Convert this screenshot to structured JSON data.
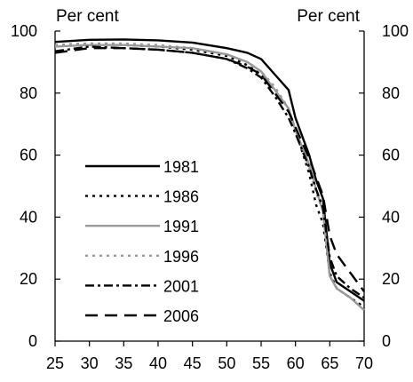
{
  "chart_data": {
    "type": "line",
    "left_unit_label": "Per cent",
    "right_unit_label": "Per cent",
    "xlim": [
      25,
      70
    ],
    "ylim": [
      0,
      100
    ],
    "x_ticks": [
      25,
      30,
      35,
      40,
      45,
      50,
      55,
      60,
      65,
      70
    ],
    "y_ticks": [
      0,
      20,
      40,
      60,
      80,
      100
    ],
    "grid": false,
    "legend_position": "lower-left",
    "x": [
      25,
      30,
      35,
      40,
      45,
      50,
      53,
      55,
      57,
      59,
      60,
      62,
      63,
      64,
      65,
      66,
      68,
      70
    ],
    "series": [
      {
        "name": "1981",
        "color": "#000000",
        "dash": "solid",
        "width": 2.4,
        "values": [
          96.5,
          97.2,
          97.3,
          97.0,
          96.3,
          94.5,
          93.0,
          91.0,
          86.0,
          81.0,
          72.0,
          60.0,
          52.0,
          46.0,
          25.0,
          19.0,
          16.0,
          13.0
        ]
      },
      {
        "name": "1986",
        "color": "#000000",
        "dash": "dotted",
        "width": 2.4,
        "values": [
          95.5,
          96.0,
          95.5,
          95.0,
          94.0,
          92.0,
          89.0,
          86.0,
          81.0,
          75.0,
          68.0,
          54.0,
          44.0,
          38.0,
          22.0,
          17.0,
          14.0,
          11.0
        ]
      },
      {
        "name": "1991",
        "color": "#999999",
        "dash": "solid",
        "width": 2.4,
        "values": [
          95.0,
          95.5,
          95.5,
          95.0,
          94.5,
          92.5,
          90.0,
          87.0,
          81.0,
          75.0,
          68.0,
          57.0,
          49.0,
          42.0,
          21.0,
          17.0,
          14.0,
          10.0
        ]
      },
      {
        "name": "1996",
        "color": "#999999",
        "dash": "dotted",
        "width": 2.4,
        "values": [
          95.5,
          96.0,
          96.0,
          95.5,
          94.5,
          92.5,
          90.0,
          87.0,
          82.0,
          75.0,
          68.0,
          56.0,
          48.0,
          42.0,
          21.0,
          17.0,
          14.0,
          10.0
        ]
      },
      {
        "name": "2001",
        "color": "#000000",
        "dash": "dashdot",
        "width": 2.4,
        "values": [
          93.5,
          95.0,
          94.5,
          94.0,
          93.0,
          91.0,
          88.0,
          85.0,
          79.0,
          72.0,
          67.0,
          56.0,
          49.0,
          43.0,
          27.0,
          21.0,
          17.0,
          14.0
        ]
      },
      {
        "name": "2006",
        "color": "#000000",
        "dash": "dashed",
        "width": 2.4,
        "values": [
          93.0,
          94.5,
          94.5,
          94.0,
          93.0,
          91.0,
          88.5,
          86.0,
          80.0,
          74.0,
          69.0,
          59.0,
          53.0,
          47.0,
          34.0,
          28.0,
          22.0,
          16.0
        ]
      }
    ]
  }
}
